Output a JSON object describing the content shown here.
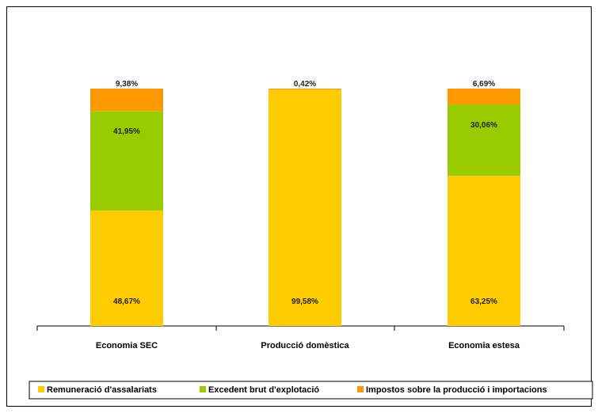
{
  "chart_data": {
    "type": "bar",
    "stacked": true,
    "categories": [
      "Economia SEC",
      "Producció domèstica",
      "Economia estesa"
    ],
    "series": [
      {
        "name": "Remuneració d'assalariats",
        "values": [
          48.67,
          99.58,
          63.25
        ],
        "labels": [
          "48,67%",
          "99,58%",
          "63,25%"
        ],
        "color": "#FFCC00"
      },
      {
        "name": "Excedent brut d'explotació",
        "values": [
          41.95,
          0,
          30.06
        ],
        "labels": [
          "41,95%",
          "",
          "30,06%"
        ],
        "color": "#99CC00"
      },
      {
        "name": "Impostos sobre la producció i importacions",
        "values": [
          9.38,
          0.42,
          6.69
        ],
        "labels": [
          "9,38%",
          "0,42%",
          "6,69%"
        ],
        "color": "#FF9900"
      }
    ],
    "ylim": [
      0,
      100
    ],
    "grid": false,
    "legend": "bottom"
  }
}
